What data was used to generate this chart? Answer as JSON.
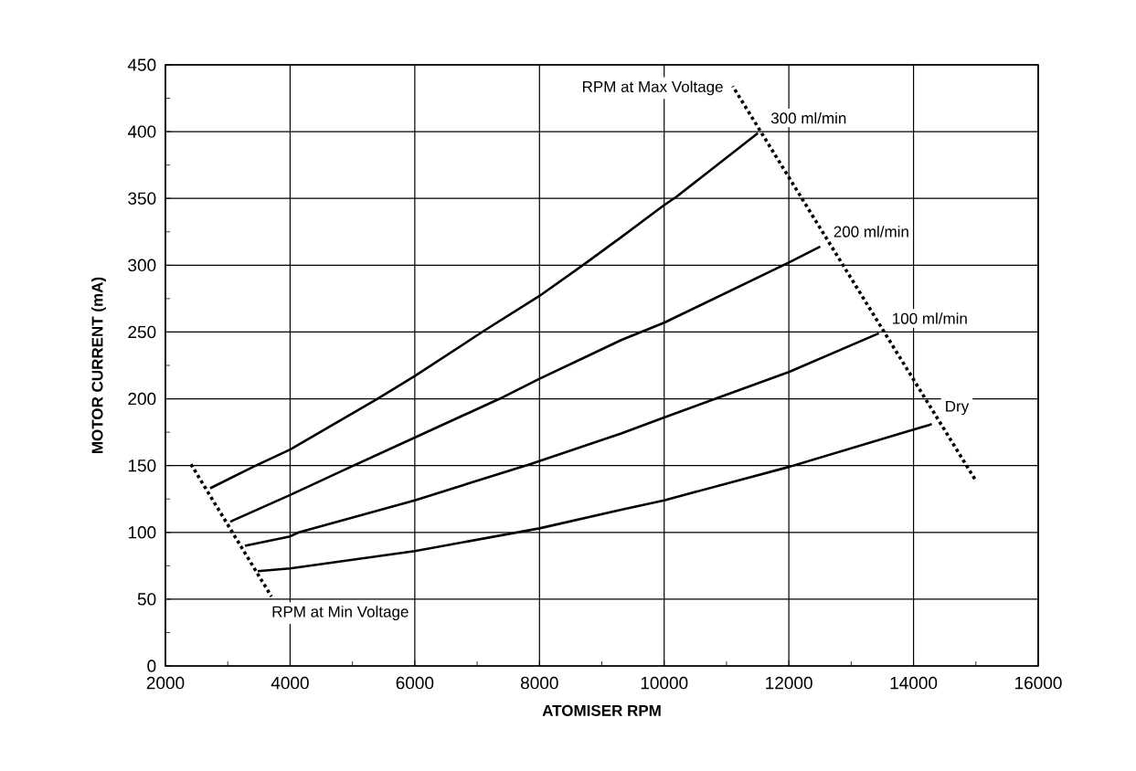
{
  "chart_data": {
    "type": "line",
    "xlabel": "ATOMISER RPM",
    "ylabel": "MOTOR CURRENT (mA)",
    "xlim": [
      2000,
      16000
    ],
    "ylim": [
      0,
      450
    ],
    "xticks": [
      2000,
      4000,
      6000,
      8000,
      10000,
      12000,
      14000,
      16000
    ],
    "yticks": [
      0,
      50,
      100,
      150,
      200,
      250,
      300,
      350,
      400,
      450
    ],
    "grid": true,
    "series": [
      {
        "name": "300 ml/min",
        "color": "#000000",
        "x": [
          2718,
          3450,
          4000,
          5400,
          6000,
          7113,
          8000,
          8725,
          9311,
          10000,
          10190,
          11480,
          11500
        ],
        "values": [
          133,
          150,
          162,
          200,
          217,
          251,
          277,
          301,
          321,
          345,
          351,
          398,
          399
        ]
      },
      {
        "name": "200 ml/min",
        "color": "#000000",
        "x": [
          3040,
          4000,
          5018,
          6000,
          7360,
          8000,
          8725,
          9311,
          10000,
          12000,
          12505
        ],
        "values": [
          108,
          128,
          150,
          171,
          200,
          215,
          231,
          244,
          257,
          302,
          314
        ]
      },
      {
        "name": "100 ml/min",
        "color": "#000000",
        "x": [
          3275,
          4000,
          4140,
          6000,
          7846,
          9311,
          10000,
          10820,
          12000,
          13443
        ],
        "values": [
          90,
          97,
          100,
          124,
          151,
          174,
          186,
          200,
          220,
          249
        ]
      },
      {
        "name": "Dry",
        "color": "#000000",
        "x": [
          3480,
          4000,
          6000,
          8000,
          9311,
          10000,
          12000,
          14000,
          14293
        ],
        "values": [
          71,
          73,
          86,
          103,
          117,
          124,
          149,
          177,
          181
        ]
      },
      {
        "name": "RPM at Max Voltage",
        "color": "#000000",
        "line_style": "dotted",
        "x": [
          14982,
          11100
        ],
        "values": [
          140,
          434
        ]
      },
      {
        "name": "RPM at Min Voltage",
        "color": "#000000",
        "line_style": "dotted",
        "x": [
          2410,
          3700
        ],
        "values": [
          151,
          52
        ]
      }
    ]
  }
}
